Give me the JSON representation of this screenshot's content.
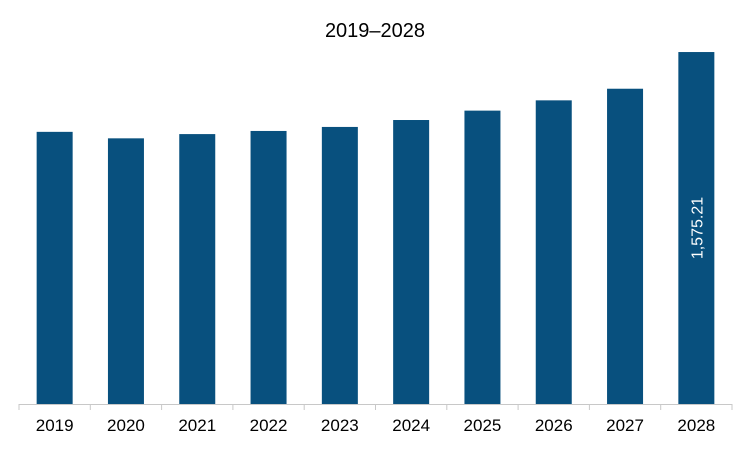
{
  "chart_data": {
    "type": "bar",
    "title": "2019–2028",
    "xlabel": "",
    "ylabel": "",
    "categories": [
      "2019",
      "2020",
      "2021",
      "2022",
      "2023",
      "2024",
      "2025",
      "2026",
      "2027",
      "2028"
    ],
    "values": [
      1218,
      1189,
      1208,
      1222,
      1240,
      1271,
      1313,
      1359,
      1411,
      1575.21
    ],
    "ylim": [
      0,
      1600
    ],
    "data_labels": [
      "",
      "",
      "",
      "",
      "",
      "",
      "",
      "",
      "",
      "1,575.21"
    ],
    "grid": false,
    "legend": "none",
    "bar_color": "#08507e",
    "axis_color": "#c8c8c8"
  }
}
